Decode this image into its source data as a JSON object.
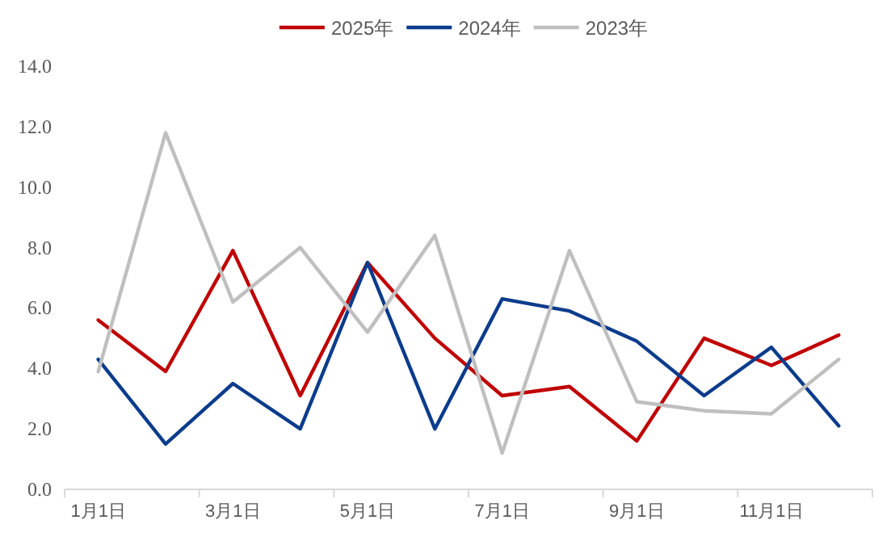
{
  "chart_data": {
    "type": "line",
    "categories": [
      "1月1日",
      null,
      "3月1日",
      null,
      "5月1日",
      null,
      "7月1日",
      null,
      "9月1日",
      null,
      "11月1日",
      null
    ],
    "series": [
      {
        "name": "2025年",
        "color": "#c00000",
        "values": [
          5.6,
          3.9,
          7.9,
          3.1,
          7.5,
          5.0,
          3.1,
          3.4,
          1.6,
          5.0,
          4.1,
          5.1
        ]
      },
      {
        "name": "2024年",
        "color": "#0b3c8c",
        "values": [
          4.3,
          1.5,
          3.5,
          2.0,
          7.5,
          2.0,
          6.3,
          5.9,
          4.9,
          3.1,
          4.7,
          2.1
        ]
      },
      {
        "name": "2023年",
        "color": "#bfbfbf",
        "values": [
          3.9,
          11.8,
          6.2,
          8.0,
          5.2,
          8.4,
          1.2,
          7.9,
          2.9,
          2.6,
          2.5,
          4.3
        ]
      }
    ],
    "ylim": [
      0,
      14
    ],
    "yticks": [
      {
        "value": 0,
        "label": "0.0"
      },
      {
        "value": 2,
        "label": "2.0"
      },
      {
        "value": 4,
        "label": "4.0"
      },
      {
        "value": 6,
        "label": "6.0"
      },
      {
        "value": 8,
        "label": "8.0"
      },
      {
        "value": 10,
        "label": "10.0"
      },
      {
        "value": 12,
        "label": "12.0"
      },
      {
        "value": 14,
        "label": "14.0"
      }
    ],
    "grid": false,
    "legend": "top",
    "marker": "none",
    "line_style": "solid"
  }
}
